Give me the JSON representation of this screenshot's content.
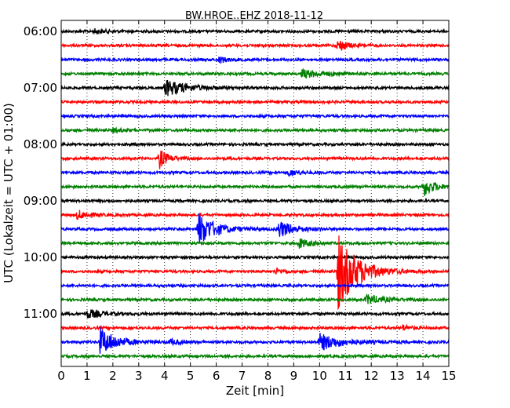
{
  "chart_data": {
    "type": "line",
    "title": "BW.HROE..EHZ 2018-11-12",
    "xlabel": "Zeit  [min]",
    "ylabel": "UTC (Lokalzeit = UTC + 01:00)",
    "xlim": [
      0,
      15
    ],
    "x_ticks": [
      "0",
      "1",
      "2",
      "3",
      "4",
      "5",
      "6",
      "7",
      "8",
      "9",
      "10",
      "11",
      "12",
      "13",
      "14",
      "15"
    ],
    "y_ticks": [
      "06:00",
      "07:00",
      "08:00",
      "09:00",
      "10:00",
      "11:00"
    ],
    "grid": "vertical dotted",
    "trace_interval_minutes": 15,
    "color_cycle": [
      "#000000",
      "#ff0000",
      "#0000ff",
      "#008000"
    ],
    "series": [
      {
        "start": "06:00",
        "events": [
          {
            "t": 1.3,
            "amp": 0.15,
            "dur": 0.4
          }
        ]
      },
      {
        "start": "06:15",
        "events": [
          {
            "t": 10.7,
            "amp": 0.5,
            "dur": 0.3
          }
        ]
      },
      {
        "start": "06:30",
        "events": [
          {
            "t": 6.1,
            "amp": 0.25,
            "dur": 0.3
          }
        ]
      },
      {
        "start": "06:45",
        "events": [
          {
            "t": 9.3,
            "amp": 0.3,
            "dur": 0.8
          }
        ]
      },
      {
        "start": "07:00",
        "events": [
          {
            "t": 4.0,
            "amp": 0.6,
            "dur": 0.8
          }
        ]
      },
      {
        "start": "07:15",
        "events": []
      },
      {
        "start": "07:30",
        "events": []
      },
      {
        "start": "07:45",
        "events": [
          {
            "t": 2.0,
            "amp": 0.15,
            "dur": 0.3
          }
        ]
      },
      {
        "start": "08:00",
        "events": []
      },
      {
        "start": "08:15",
        "events": [
          {
            "t": 3.8,
            "amp": 0.7,
            "dur": 0.3
          }
        ]
      },
      {
        "start": "08:30",
        "events": [
          {
            "t": 8.8,
            "amp": 0.25,
            "dur": 0.4
          }
        ]
      },
      {
        "start": "08:45",
        "events": [
          {
            "t": 14.0,
            "amp": 0.7,
            "dur": 0.4
          }
        ]
      },
      {
        "start": "09:00",
        "events": []
      },
      {
        "start": "09:15",
        "events": [
          {
            "t": 0.6,
            "amp": 0.35,
            "dur": 0.4
          }
        ]
      },
      {
        "start": "09:30",
        "events": [
          {
            "t": 5.3,
            "amp": 1.2,
            "dur": 0.6
          },
          {
            "t": 8.4,
            "amp": 0.6,
            "dur": 0.6
          }
        ]
      },
      {
        "start": "09:45",
        "events": [
          {
            "t": 9.2,
            "amp": 0.35,
            "dur": 0.4
          }
        ]
      },
      {
        "start": "10:00",
        "events": []
      },
      {
        "start": "10:15",
        "events": [
          {
            "t": 10.7,
            "amp": 2.8,
            "dur": 0.7
          },
          {
            "t": 8.3,
            "amp": 0.2,
            "dur": 0.3
          }
        ]
      },
      {
        "start": "10:30",
        "events": []
      },
      {
        "start": "10:45",
        "events": [
          {
            "t": 11.8,
            "amp": 0.35,
            "dur": 0.6
          }
        ]
      },
      {
        "start": "11:00",
        "events": [
          {
            "t": 1.0,
            "amp": 0.3,
            "dur": 0.6
          }
        ]
      },
      {
        "start": "11:15",
        "events": [
          {
            "t": 13.2,
            "amp": 0.2,
            "dur": 0.3
          }
        ]
      },
      {
        "start": "11:30",
        "events": [
          {
            "t": 1.5,
            "amp": 1.0,
            "dur": 0.6
          },
          {
            "t": 4.2,
            "amp": 0.2,
            "dur": 0.3
          },
          {
            "t": 10.0,
            "amp": 0.6,
            "dur": 0.8
          }
        ]
      },
      {
        "start": "11:45",
        "events": []
      }
    ]
  }
}
